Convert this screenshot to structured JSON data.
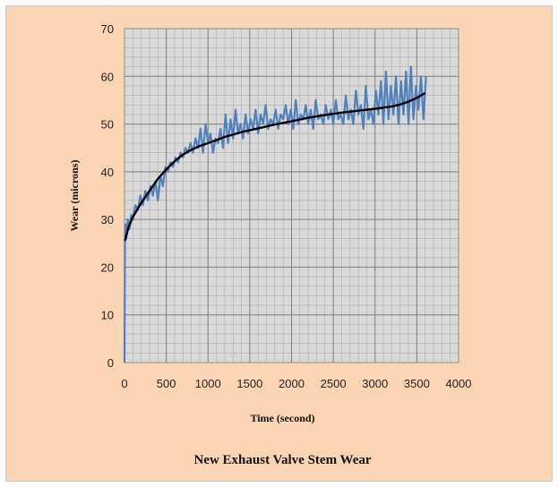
{
  "chart_data": {
    "type": "line",
    "title": "New Exhaust Valve Stem Wear",
    "xlabel": "Time (second)",
    "ylabel": "Wear (microns)",
    "xlim": [
      0,
      4000
    ],
    "ylim": [
      0,
      70
    ],
    "x_ticks": [
      "0",
      "500",
      "1000",
      "1500",
      "2000",
      "2500",
      "3000",
      "3500",
      "4000"
    ],
    "y_ticks": [
      "0",
      "10",
      "20",
      "30",
      "40",
      "50",
      "60",
      "70"
    ],
    "grid": true,
    "legend": "none",
    "series": [
      {
        "role": "measured",
        "color": "#4f81bd",
        "x": [
          0,
          5,
          10,
          20,
          40,
          60,
          80,
          100,
          130,
          160,
          190,
          220,
          250,
          280,
          310,
          340,
          370,
          400,
          430,
          460,
          490,
          520,
          550,
          580,
          610,
          640,
          670,
          700,
          730,
          760,
          790,
          820,
          850,
          880,
          910,
          940,
          970,
          1000,
          1030,
          1060,
          1090,
          1120,
          1150,
          1180,
          1210,
          1240,
          1270,
          1300,
          1330,
          1360,
          1390,
          1420,
          1450,
          1480,
          1510,
          1540,
          1570,
          1600,
          1630,
          1660,
          1690,
          1720,
          1750,
          1780,
          1810,
          1840,
          1870,
          1900,
          1930,
          1960,
          1990,
          2020,
          2050,
          2080,
          2110,
          2140,
          2170,
          2200,
          2230,
          2260,
          2290,
          2320,
          2350,
          2380,
          2410,
          2440,
          2470,
          2500,
          2530,
          2560,
          2590,
          2620,
          2650,
          2680,
          2710,
          2740,
          2770,
          2800,
          2830,
          2860,
          2890,
          2920,
          2950,
          2980,
          3010,
          3040,
          3070,
          3100,
          3130,
          3160,
          3190,
          3220,
          3250,
          3280,
          3310,
          3340,
          3370,
          3400,
          3430,
          3460,
          3490,
          3520,
          3550,
          3580,
          3610
        ],
        "y": [
          0,
          28,
          29,
          26,
          30,
          28,
          31,
          30,
          33,
          32,
          35,
          33,
          36,
          34,
          37,
          35,
          38,
          34,
          39,
          37,
          41,
          40,
          42,
          41,
          43,
          42,
          44,
          43,
          45,
          44,
          46,
          44,
          47,
          45,
          49,
          44,
          50,
          46,
          48,
          44,
          47,
          46,
          49,
          45,
          52,
          46,
          51,
          47,
          53,
          48,
          50,
          47,
          52,
          48,
          51,
          49,
          53,
          48,
          52,
          50,
          54,
          49,
          51,
          50,
          53,
          49,
          52,
          51,
          54,
          50,
          53,
          49,
          55,
          50,
          52,
          51,
          54,
          50,
          53,
          49,
          55,
          51,
          52,
          50,
          54,
          51,
          53,
          50,
          55,
          51,
          52,
          50,
          56,
          51,
          53,
          50,
          57,
          52,
          54,
          49,
          58,
          51,
          53,
          50,
          57,
          52,
          59,
          50,
          61,
          51,
          58,
          52,
          60,
          50,
          59,
          52,
          61,
          50,
          62,
          51,
          58,
          53,
          60,
          51,
          60
        ]
      },
      {
        "role": "trend",
        "color": "#000000",
        "x": [
          5,
          50,
          100,
          200,
          300,
          400,
          500,
          600,
          700,
          800,
          900,
          1000,
          1200,
          1400,
          1600,
          1800,
          2000,
          2200,
          2400,
          2600,
          2800,
          3000,
          3200,
          3300,
          3400,
          3500,
          3600
        ],
        "y": [
          25.5,
          28.5,
          30.5,
          33.5,
          36,
          38.5,
          40.5,
          42.2,
          43.6,
          44.6,
          45.4,
          46,
          47.3,
          48.3,
          49.1,
          49.9,
          50.6,
          51.3,
          51.9,
          52.4,
          52.8,
          53.2,
          53.7,
          54.1,
          54.7,
          55.5,
          56.5
        ]
      }
    ]
  }
}
